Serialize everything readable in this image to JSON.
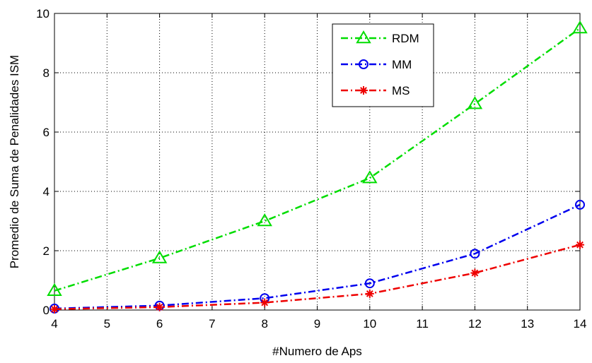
{
  "chart_data": {
    "type": "line",
    "title": "",
    "xlabel": "#Numero de Aps",
    "ylabel": "Promedio de Suma de Penalidades ISM",
    "xlim": [
      4,
      14
    ],
    "ylim": [
      0,
      10
    ],
    "xticks": [
      4,
      5,
      6,
      7,
      8,
      9,
      10,
      11,
      12,
      13,
      14
    ],
    "yticks": [
      0,
      2,
      4,
      6,
      8,
      10
    ],
    "grid": true,
    "legend_position": "top-right",
    "x": [
      4,
      6,
      8,
      10,
      12,
      14
    ],
    "series": [
      {
        "name": "RDM",
        "values": [
          0.65,
          1.75,
          3.0,
          4.45,
          6.95,
          9.5
        ],
        "color": "#00dd00",
        "marker": "triangle",
        "line_style": "dash-dot"
      },
      {
        "name": "MM",
        "values": [
          0.05,
          0.15,
          0.4,
          0.9,
          1.9,
          3.55
        ],
        "color": "#0000ee",
        "marker": "circle",
        "line_style": "dash-dot"
      },
      {
        "name": "MS",
        "values": [
          0.03,
          0.1,
          0.25,
          0.55,
          1.25,
          2.2
        ],
        "color": "#ee0000",
        "marker": "asterisk",
        "line_style": "dash-dot"
      }
    ]
  }
}
